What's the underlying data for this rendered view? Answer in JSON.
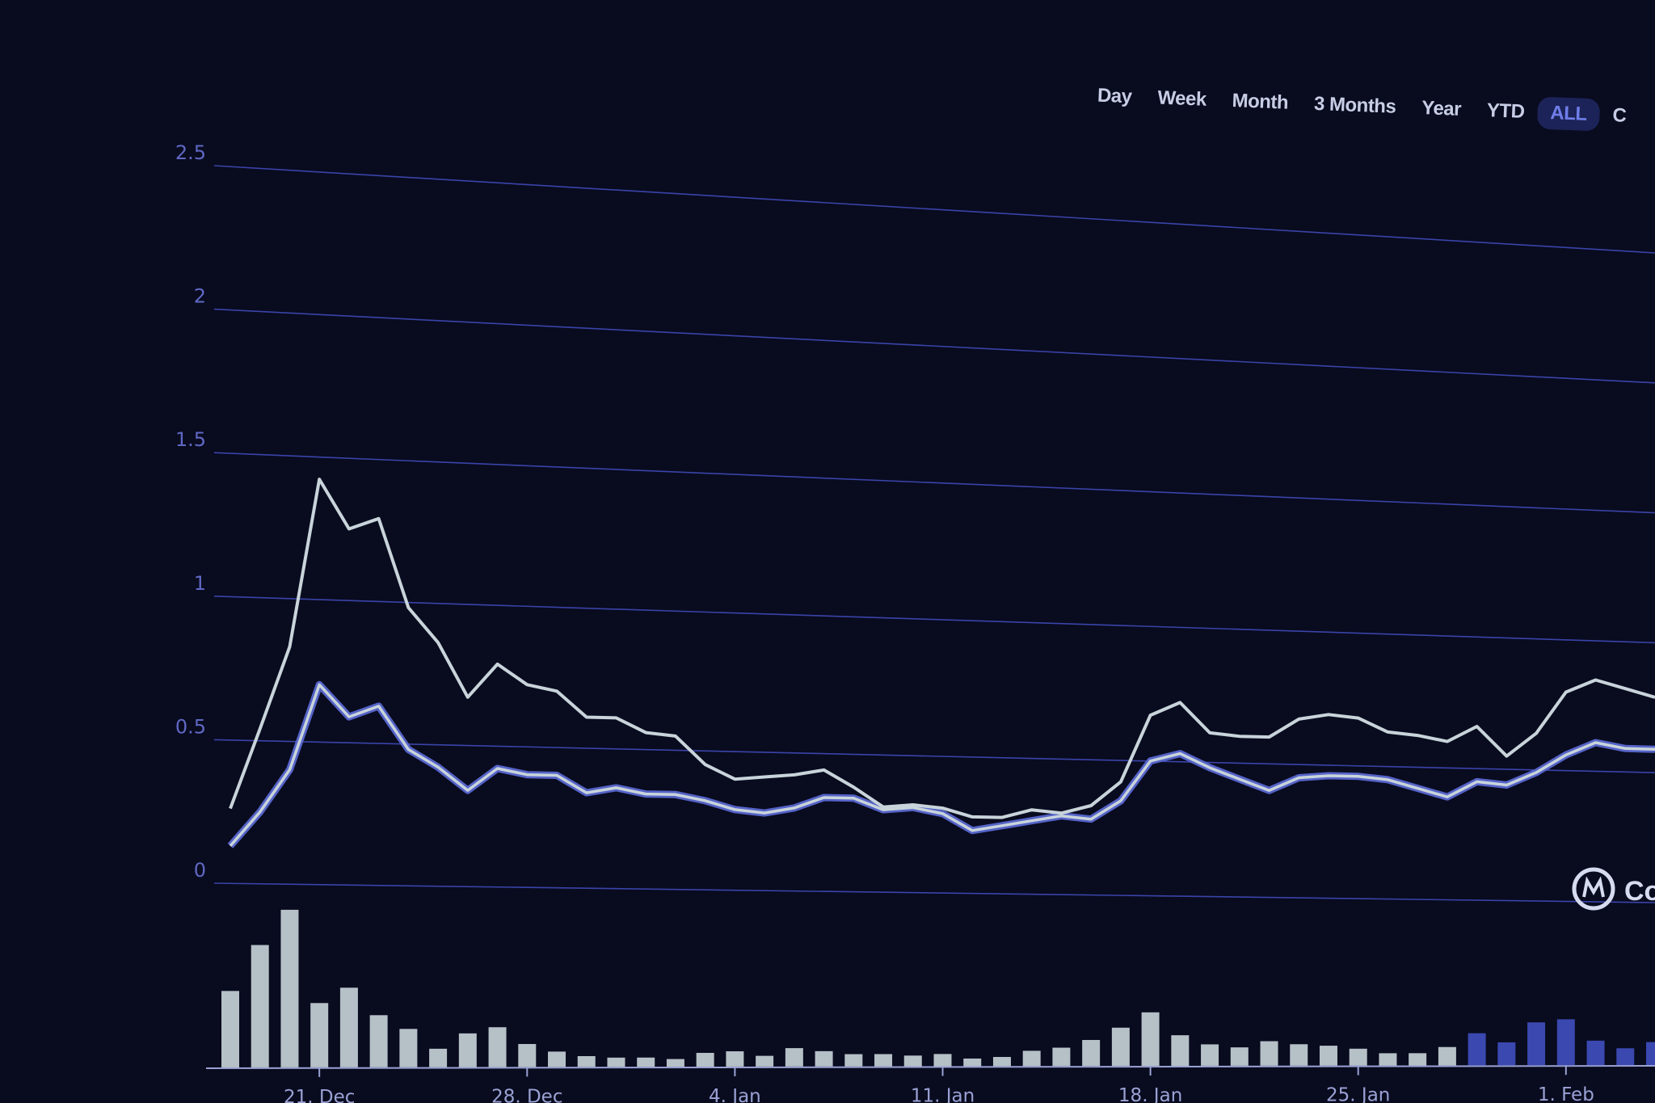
{
  "range_selector": {
    "options": [
      "Day",
      "Week",
      "Month",
      "3 Months",
      "Year",
      "YTD",
      "ALL",
      "C"
    ],
    "active": "ALL"
  },
  "watermark": {
    "text": "Co"
  },
  "colors": {
    "background": "#090b1f",
    "gridline": "#3a44a8",
    "upper_line": "#c8d4da",
    "lower_line": "#c8d4da",
    "lower_line_glow": "#5563c8",
    "volume_light": "#c4d0d6",
    "volume_blue": "#3a48b0"
  },
  "chart_data": {
    "type": "line",
    "y_ticks": [
      0,
      0.5,
      1,
      1.5,
      2,
      2.5
    ],
    "y_tick_labels": [
      "0",
      "0.5",
      "1",
      "1.5",
      "2",
      "2.5"
    ],
    "ylim": [
      0,
      2.6
    ],
    "x_tick_labels": [
      "21. Dec",
      "28. Dec",
      "4. Jan",
      "11. Jan",
      "18. Jan",
      "25. Jan",
      "1. Feb"
    ],
    "x_tick_day_index": [
      3,
      10,
      17,
      24,
      31,
      38,
      45
    ],
    "x_days": 48,
    "series": [
      {
        "values": [
          0.26,
          0.54,
          0.83,
          1.42,
          1.25,
          1.29,
          0.98,
          0.86,
          0.67,
          0.79,
          0.72,
          0.7,
          0.61,
          0.61,
          0.56,
          0.55,
          0.45,
          0.4,
          0.41,
          0.42,
          0.44,
          0.38,
          0.31,
          0.32,
          0.31,
          0.28,
          0.28,
          0.31,
          0.3,
          0.33,
          0.42,
          0.67,
          0.72,
          0.61,
          0.6,
          0.6,
          0.67,
          0.69,
          0.68,
          0.63,
          0.62,
          0.6,
          0.66,
          0.55,
          0.64,
          0.8,
          0.85,
          0.82,
          0.79
        ]
      },
      {
        "values": [
          0.13,
          0.25,
          0.4,
          0.7,
          0.59,
          0.63,
          0.48,
          0.42,
          0.34,
          0.42,
          0.4,
          0.4,
          0.34,
          0.36,
          0.34,
          0.34,
          0.32,
          0.29,
          0.28,
          0.3,
          0.34,
          0.34,
          0.3,
          0.31,
          0.29,
          0.23,
          0.25,
          0.27,
          0.29,
          0.28,
          0.35,
          0.5,
          0.53,
          0.48,
          0.44,
          0.4,
          0.45,
          0.46,
          0.46,
          0.45,
          0.42,
          0.39,
          0.45,
          0.44,
          0.49,
          0.56,
          0.61,
          0.59,
          0.59
        ]
      }
    ],
    "volume": [
      5.0,
      8.0,
      10.3,
      4.2,
      5.2,
      3.4,
      2.5,
      1.2,
      2.2,
      2.6,
      1.5,
      1.0,
      0.7,
      0.6,
      0.6,
      0.5,
      0.9,
      1.0,
      0.7,
      1.2,
      1.0,
      0.8,
      0.8,
      0.7,
      0.8,
      0.5,
      0.6,
      1.0,
      1.2,
      1.7,
      2.5,
      3.5,
      2.0,
      1.4,
      1.2,
      1.6,
      1.4,
      1.3,
      1.1,
      0.8,
      0.8,
      1.2,
      2.1,
      1.5,
      2.8,
      3.0,
      1.6,
      1.1,
      1.5
    ]
  }
}
